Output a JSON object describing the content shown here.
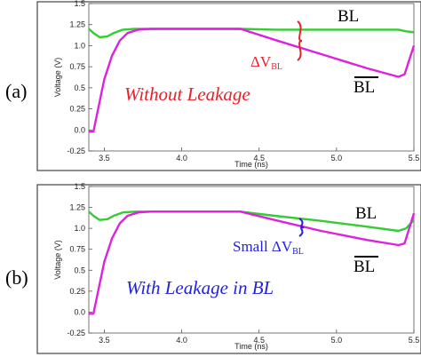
{
  "chart_data": [
    {
      "type": "line",
      "panel_label": "(a)",
      "annotation": "Without Leakage",
      "annotation_color": "#e8202a",
      "delta_label_prefix": "ΔV",
      "delta_label_sub": "BL",
      "delta_color": "#e8202a",
      "xlabel": "Time (ns)",
      "ylabel": "Voltage (V)",
      "xlim": [
        3.4,
        5.5
      ],
      "ylim": [
        -0.25,
        1.5
      ],
      "xticks": [
        "3.5",
        "4.0",
        "4.5",
        "5.0",
        "5.5"
      ],
      "yticks": [
        "1.5",
        "1.25",
        "1.0",
        "0.75",
        "0.5",
        "0.25",
        "0.0",
        "-0.25"
      ],
      "series": [
        {
          "name": "BL",
          "color": "#33cc33",
          "points": [
            [
              3.4,
              1.2
            ],
            [
              3.43,
              1.15
            ],
            [
              3.47,
              1.1
            ],
            [
              3.52,
              1.11
            ],
            [
              3.56,
              1.15
            ],
            [
              3.62,
              1.19
            ],
            [
              3.7,
              1.2
            ],
            [
              4.38,
              1.2
            ],
            [
              4.6,
              1.19
            ],
            [
              4.9,
              1.19
            ],
            [
              5.2,
              1.19
            ],
            [
              5.4,
              1.19
            ],
            [
              5.45,
              1.17
            ],
            [
              5.5,
              1.16
            ]
          ]
        },
        {
          "name": "BL̄",
          "color": "#dd22dd",
          "points": [
            [
              3.4,
              -0.02
            ],
            [
              3.43,
              -0.02
            ],
            [
              3.46,
              0.25
            ],
            [
              3.5,
              0.6
            ],
            [
              3.55,
              0.88
            ],
            [
              3.6,
              1.06
            ],
            [
              3.65,
              1.15
            ],
            [
              3.72,
              1.19
            ],
            [
              3.8,
              1.2
            ],
            [
              4.38,
              1.2
            ],
            [
              4.6,
              1.07
            ],
            [
              4.9,
              0.9
            ],
            [
              5.2,
              0.73
            ],
            [
              5.4,
              0.63
            ],
            [
              5.44,
              0.66
            ],
            [
              5.5,
              1.0
            ]
          ]
        }
      ]
    },
    {
      "type": "line",
      "panel_label": "(b)",
      "annotation": "With Leakage in BL",
      "annotation_color": "#2222dd",
      "delta_label_prefix": "Small ΔV",
      "delta_label_sub": "BL",
      "delta_color": "#2222dd",
      "xlabel": "Time (ns)",
      "ylabel": "Voltage (V)",
      "xlim": [
        3.4,
        5.5
      ],
      "ylim": [
        -0.25,
        1.5
      ],
      "xticks": [
        "3.5",
        "4.0",
        "4.5",
        "5.0",
        "5.5"
      ],
      "yticks": [
        "1.5",
        "1.25",
        "1.0",
        "0.75",
        "0.5",
        "0.25",
        "0.0",
        "-0.25"
      ],
      "series": [
        {
          "name": "BL",
          "color": "#33cc33",
          "points": [
            [
              3.4,
              1.2
            ],
            [
              3.43,
              1.15
            ],
            [
              3.47,
              1.1
            ],
            [
              3.52,
              1.11
            ],
            [
              3.56,
              1.15
            ],
            [
              3.62,
              1.19
            ],
            [
              3.7,
              1.2
            ],
            [
              4.38,
              1.2
            ],
            [
              4.6,
              1.15
            ],
            [
              4.9,
              1.09
            ],
            [
              5.2,
              1.02
            ],
            [
              5.4,
              0.97
            ],
            [
              5.45,
              1.0
            ],
            [
              5.5,
              1.1
            ]
          ]
        },
        {
          "name": "BL̄",
          "color": "#dd22dd",
          "points": [
            [
              3.4,
              -0.02
            ],
            [
              3.43,
              -0.02
            ],
            [
              3.46,
              0.25
            ],
            [
              3.5,
              0.6
            ],
            [
              3.55,
              0.88
            ],
            [
              3.6,
              1.06
            ],
            [
              3.65,
              1.15
            ],
            [
              3.72,
              1.19
            ],
            [
              3.8,
              1.2
            ],
            [
              4.38,
              1.2
            ],
            [
              4.6,
              1.1
            ],
            [
              4.9,
              0.97
            ],
            [
              5.2,
              0.86
            ],
            [
              5.4,
              0.8
            ],
            [
              5.44,
              0.82
            ],
            [
              5.5,
              1.18
            ]
          ]
        }
      ]
    }
  ],
  "labels": {
    "bl": "BL",
    "blbar": "BL"
  }
}
